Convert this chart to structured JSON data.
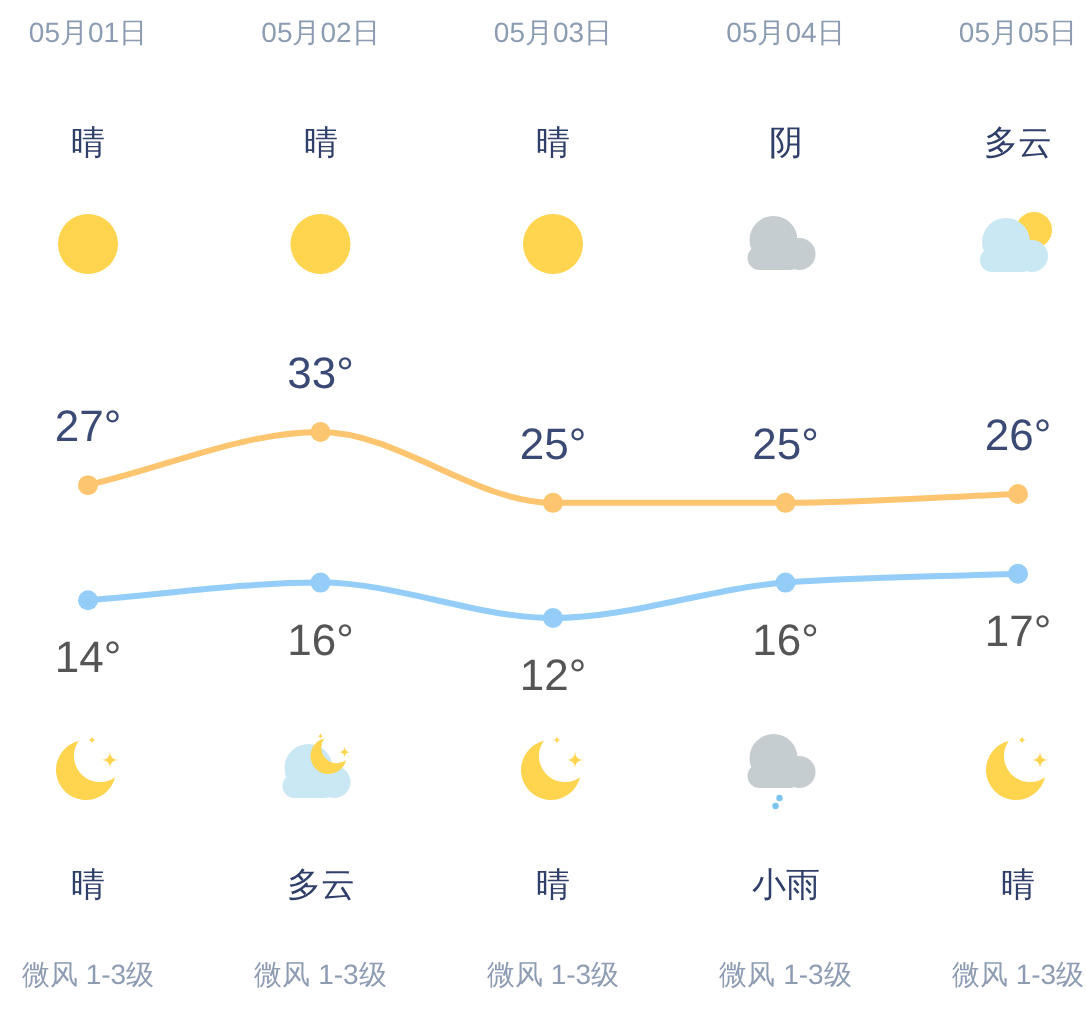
{
  "chart_data": {
    "type": "line",
    "categories": [
      "05月01日",
      "05月02日",
      "05月03日",
      "05月04日",
      "05月05日"
    ],
    "series": [
      {
        "color": "#fdc56f",
        "values": [
          27,
          33,
          25,
          25,
          26
        ],
        "value_labels": [
          "27°",
          "33°",
          "25°",
          "25°",
          "26°"
        ]
      },
      {
        "color": "#94cdf8",
        "values": [
          14,
          16,
          12,
          16,
          17
        ],
        "value_labels": [
          "14°",
          "16°",
          "12°",
          "16°",
          "17°"
        ]
      }
    ],
    "marker": "circle",
    "annotations": [
      "晴",
      "晴",
      "晴",
      "阴",
      "多云",
      "晴",
      "多云",
      "晴",
      "小雨",
      "晴",
      "微风 1-3级",
      "微风 1-3级",
      "微风 1-3级",
      "微风 1-3级",
      "微风 1-3级"
    ]
  }
}
